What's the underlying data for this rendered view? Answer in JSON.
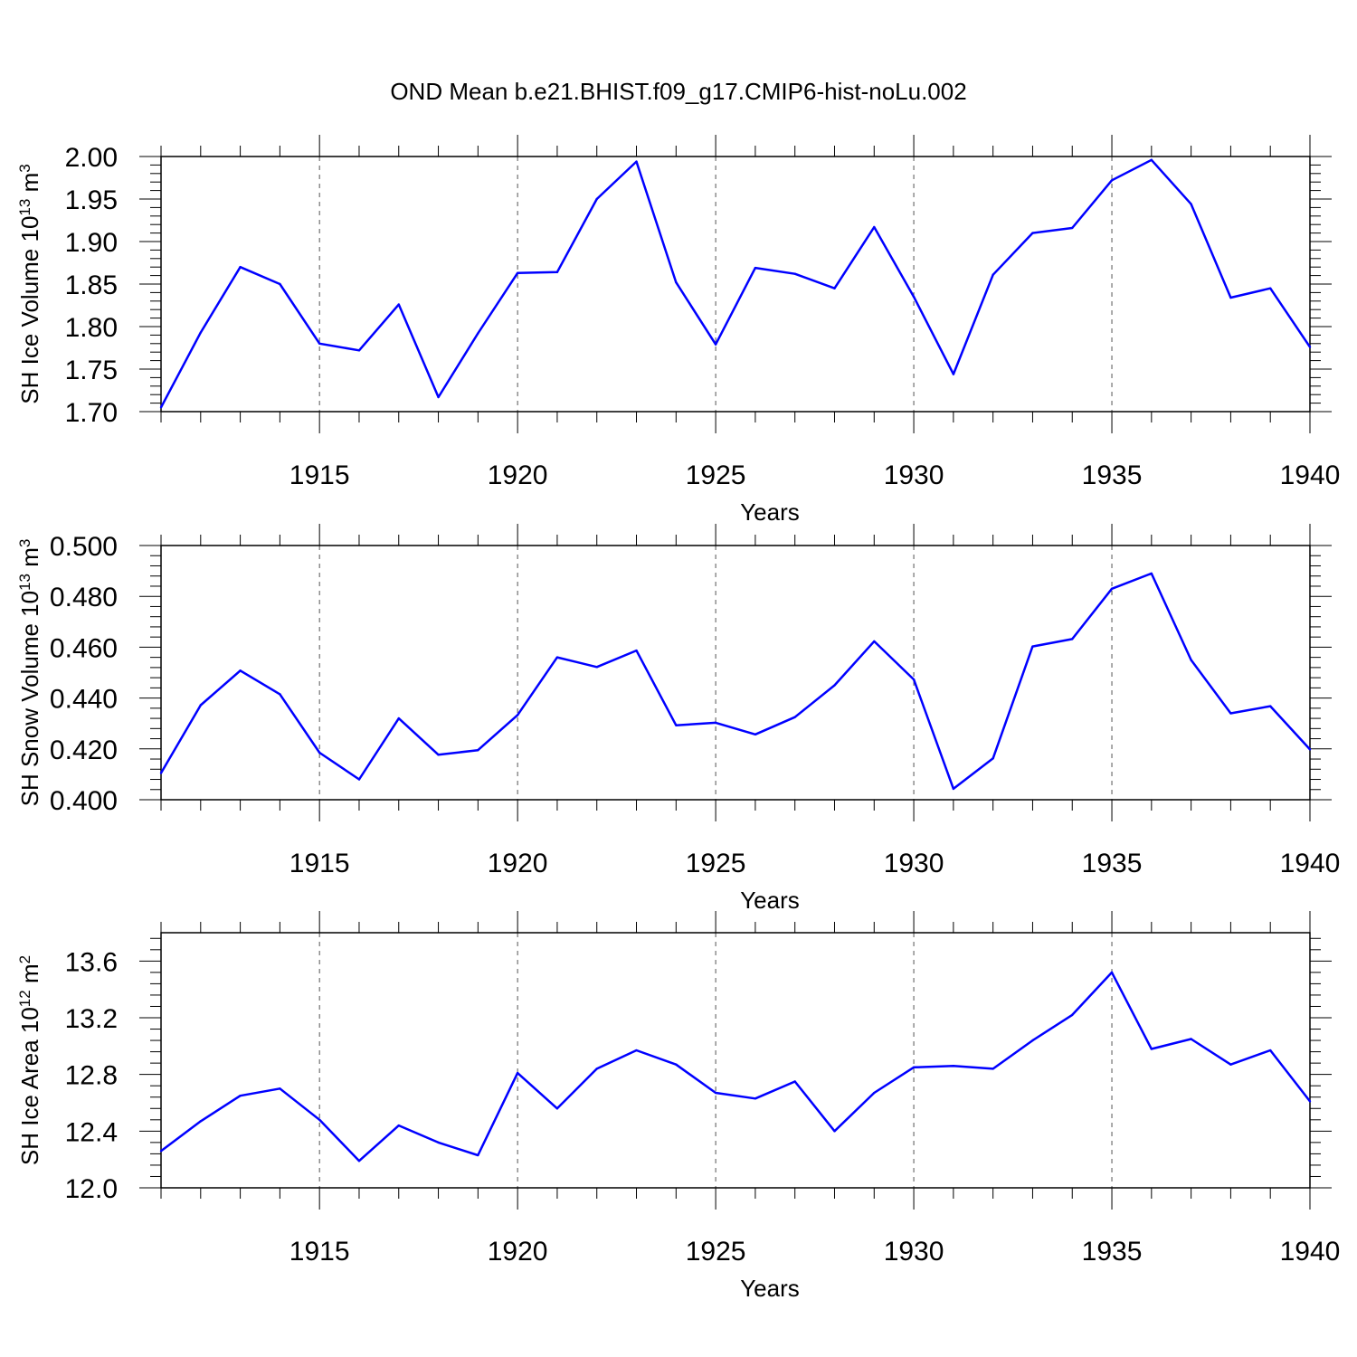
{
  "title": "OND Mean b.e21.BHIST.f09_g17.CMIP6-hist-noLu.002",
  "line_color": "#0000ff",
  "chart_data": [
    {
      "type": "line",
      "title": "OND Mean b.e21.BHIST.f09_g17.CMIP6-hist-noLu.002",
      "xlabel": "Years",
      "ylabel": {
        "text": "SH Ice Volume 10",
        "exp": "13",
        "unit": " m",
        "unit_exp": "3"
      },
      "xlim": [
        1911,
        1940
      ],
      "ylim": [
        1.7,
        2.0
      ],
      "y_ticks": [
        1.7,
        1.75,
        1.8,
        1.85,
        1.9,
        1.95,
        2.0
      ],
      "y_tick_labels": [
        "1.70",
        "1.75",
        "1.80",
        "1.85",
        "1.90",
        "1.95",
        "2.00"
      ],
      "x_ticks": [
        1915,
        1920,
        1925,
        1930,
        1935,
        1940
      ],
      "x_tick_labels": [
        "1915",
        "1920",
        "1925",
        "1930",
        "1935",
        "1940"
      ],
      "grid": "vertical dashed at major x ticks",
      "x": [
        1911,
        1912,
        1913,
        1914,
        1915,
        1916,
        1917,
        1918,
        1919,
        1920,
        1921,
        1922,
        1923,
        1924,
        1925,
        1926,
        1927,
        1928,
        1929,
        1930,
        1931,
        1932,
        1933,
        1934,
        1935,
        1936,
        1937,
        1938,
        1939,
        1940
      ],
      "values": [
        1.705,
        1.793,
        1.87,
        1.85,
        1.78,
        1.772,
        1.826,
        1.717,
        1.792,
        1.863,
        1.864,
        1.95,
        1.994,
        1.852,
        1.779,
        1.869,
        1.862,
        1.845,
        1.917,
        1.835,
        1.744,
        1.861,
        1.91,
        1.916,
        1.972,
        1.996,
        1.944,
        1.834,
        1.845,
        1.776
      ]
    },
    {
      "type": "line",
      "xlabel": "Years",
      "ylabel": {
        "text": "SH Snow Volume 10",
        "exp": "13",
        "unit": " m",
        "unit_exp": "3"
      },
      "xlim": [
        1911,
        1940
      ],
      "ylim": [
        0.4,
        0.5
      ],
      "y_ticks": [
        0.4,
        0.42,
        0.44,
        0.46,
        0.48,
        0.5
      ],
      "y_tick_labels": [
        "0.400",
        "0.420",
        "0.440",
        "0.460",
        "0.480",
        "0.500"
      ],
      "x_ticks": [
        1915,
        1920,
        1925,
        1930,
        1935,
        1940
      ],
      "x_tick_labels": [
        "1915",
        "1920",
        "1925",
        "1930",
        "1935",
        "1940"
      ],
      "grid": "vertical dashed at major x ticks",
      "x": [
        1911,
        1912,
        1913,
        1914,
        1915,
        1916,
        1917,
        1918,
        1919,
        1920,
        1921,
        1922,
        1923,
        1924,
        1925,
        1926,
        1927,
        1928,
        1929,
        1930,
        1931,
        1932,
        1933,
        1934,
        1935,
        1936,
        1937,
        1938,
        1939,
        1940
      ],
      "values": [
        0.4105,
        0.4372,
        0.4508,
        0.4415,
        0.4185,
        0.408,
        0.432,
        0.4177,
        0.4195,
        0.4333,
        0.456,
        0.4522,
        0.4587,
        0.4293,
        0.4303,
        0.4257,
        0.4325,
        0.445,
        0.4623,
        0.4473,
        0.4043,
        0.4163,
        0.4603,
        0.4632,
        0.483,
        0.489,
        0.455,
        0.434,
        0.4368,
        0.4198
      ]
    },
    {
      "type": "line",
      "xlabel": "Years",
      "ylabel": {
        "text": "SH Ice Area 10",
        "exp": "12",
        "unit": " m",
        "unit_exp": "2"
      },
      "xlim": [
        1911,
        1940
      ],
      "ylim": [
        12.0,
        13.8
      ],
      "y_ticks": [
        12.0,
        12.4,
        12.8,
        13.2,
        13.6
      ],
      "y_tick_labels": [
        "12.0",
        "12.4",
        "12.8",
        "13.2",
        "13.6"
      ],
      "x_ticks": [
        1915,
        1920,
        1925,
        1930,
        1935,
        1940
      ],
      "x_tick_labels": [
        "1915",
        "1920",
        "1925",
        "1930",
        "1935",
        "1940"
      ],
      "grid": "vertical dashed at major x ticks",
      "x": [
        1911,
        1912,
        1913,
        1914,
        1915,
        1916,
        1917,
        1918,
        1919,
        1920,
        1921,
        1922,
        1923,
        1924,
        1925,
        1926,
        1927,
        1928,
        1929,
        1930,
        1931,
        1932,
        1933,
        1934,
        1935,
        1936,
        1937,
        1938,
        1939,
        1940
      ],
      "values": [
        12.26,
        12.47,
        12.65,
        12.7,
        12.48,
        12.19,
        12.44,
        12.32,
        12.23,
        12.81,
        12.56,
        12.84,
        12.97,
        12.87,
        12.67,
        12.63,
        12.75,
        12.4,
        12.67,
        12.85,
        12.86,
        12.84,
        13.04,
        13.22,
        13.52,
        12.98,
        13.05,
        12.87,
        12.97,
        12.61
      ]
    }
  ]
}
